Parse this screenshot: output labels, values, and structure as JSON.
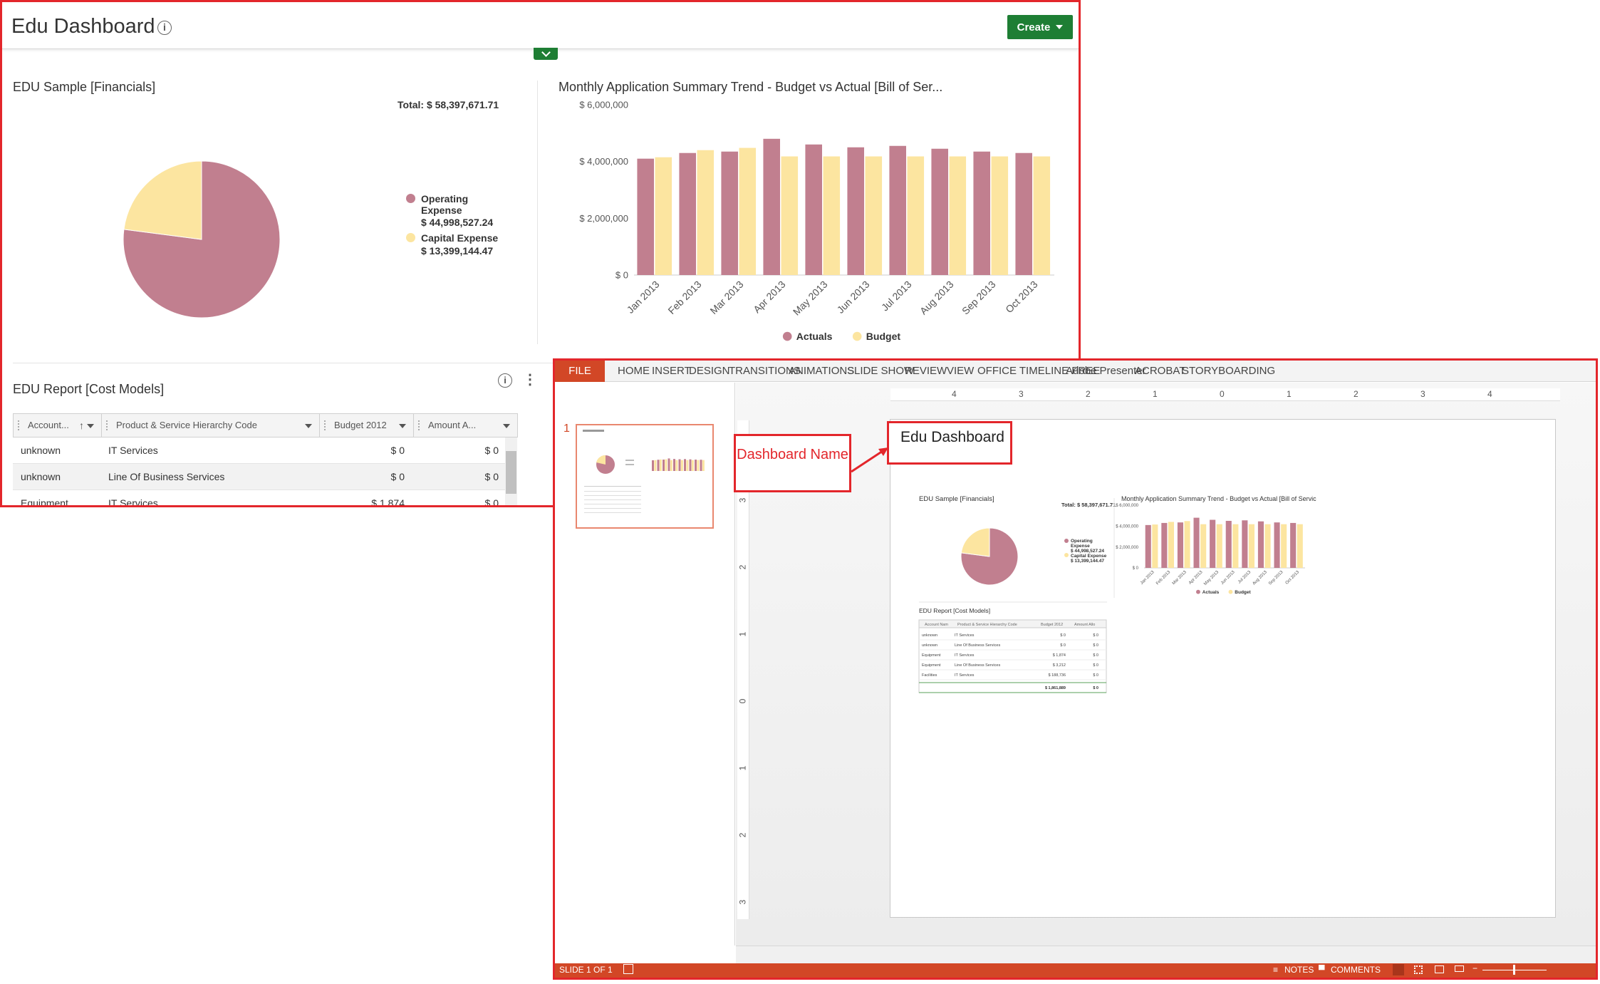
{
  "dashboard": {
    "title": "Edu Dashboard",
    "create_label": "Create",
    "pie_widget": {
      "title": "EDU Sample [Financials]",
      "total_label": "Total: $ 58,397,671.71",
      "legend": [
        {
          "label": "Operating Expense",
          "value": "$ 44,998,527.24",
          "color": "#c17f8f"
        },
        {
          "label": "Capital Expense",
          "value": "$ 13,399,144.47",
          "color": "#fce5a0"
        }
      ]
    },
    "bar_widget": {
      "title": "Monthly Application Summary Trend - Budget vs Actual [Bill of Ser..."
    },
    "report_widget": {
      "title": "EDU Report [Cost Models]",
      "columns": [
        "Account...",
        "Product & Service Hierarchy Code",
        "Budget 2012",
        "Amount A..."
      ],
      "rows": [
        {
          "account": "unknown",
          "code": "IT Services",
          "budget": "$ 0",
          "amount": "$ 0"
        },
        {
          "account": "unknown",
          "code": "Line Of Business Services",
          "budget": "$ 0",
          "amount": "$ 0"
        },
        {
          "account": "Equipment",
          "code": "IT Services",
          "budget": "$ 1,874",
          "amount": "$ 0"
        }
      ]
    }
  },
  "chart_data": [
    {
      "type": "pie",
      "title": "EDU Sample [Financials]",
      "slices": [
        {
          "label": "Operating Expense",
          "value": 44998527.24,
          "color": "#c17f8f"
        },
        {
          "label": "Capital Expense",
          "value": 13399144.47,
          "color": "#fce5a0"
        }
      ]
    },
    {
      "type": "bar",
      "title": "Monthly Application Summary Trend - Budget vs Actual [Bill of Ser...",
      "categories": [
        "Jan 2013",
        "Feb 2013",
        "Mar 2013",
        "Apr 2013",
        "May 2013",
        "Jun 2013",
        "Jul 2013",
        "Aug 2013",
        "Sep 2013",
        "Oct 2013"
      ],
      "y_ticks": [
        "$ 0",
        "$ 2,000,000",
        "$ 4,000,000",
        "$ 6,000,000"
      ],
      "ylim": [
        0,
        6000000
      ],
      "series": [
        {
          "name": "Actuals",
          "color": "#c17f8f",
          "values": [
            4100000,
            4300000,
            4350000,
            4800000,
            4600000,
            4500000,
            4550000,
            4450000,
            4350000,
            4300000
          ]
        },
        {
          "name": "Budget",
          "color": "#fce5a0",
          "values": [
            4150000,
            4400000,
            4480000,
            4180000,
            4180000,
            4180000,
            4180000,
            4180000,
            4180000,
            4180000
          ]
        }
      ],
      "legend": "bottom"
    }
  ],
  "ppt": {
    "tabs": [
      "FILE",
      "HOME",
      "INSERT",
      "DESIGN",
      "TRANSITIONS",
      "ANIMATIONS",
      "SLIDE SHOW",
      "REVIEW",
      "VIEW",
      "OFFICE TIMELINE FREE",
      "Adobe Presenter",
      "ACROBAT",
      "STORYBOARDING"
    ],
    "slide_number": "1",
    "ruler_h": [
      "4",
      "3",
      "2",
      "1",
      "0",
      "1",
      "2",
      "3",
      "4"
    ],
    "ruler_v": [
      "3",
      "2",
      "1",
      "0",
      "1",
      "2",
      "3"
    ],
    "slide": {
      "title": "Edu Dashboard",
      "pie_title": "EDU Sample [Financials]",
      "pie_total": "Total: $ 58,397,671.71",
      "legend": [
        {
          "label": "Operating Expense",
          "value": "$ 44,998,527.24"
        },
        {
          "label": "Capital Expense",
          "value": "$ 13,399,144.47"
        }
      ],
      "bar_title": "Monthly Application Summary Trend - Budget vs Actual [Bill of Servic",
      "report_title": "EDU Report [Cost Models]",
      "columns": [
        "Account Nam",
        "Product & Service Hierarchy Code",
        "Budget 2012",
        "Amount Allo"
      ],
      "rows": [
        {
          "account": "unknown",
          "code": "IT Services",
          "budget": "$ 0",
          "amount": "$ 0"
        },
        {
          "account": "unknown",
          "code": "Line Of Business Services",
          "budget": "$ 0",
          "amount": "$ 0"
        },
        {
          "account": "Equipment",
          "code": "IT Services",
          "budget": "$ 1,874",
          "amount": "$ 0"
        },
        {
          "account": "Equipment",
          "code": "Line Of Business Services",
          "budget": "$ 3,212",
          "amount": "$ 0"
        },
        {
          "account": "Facilities",
          "code": "IT Services",
          "budget": "$ 188,736",
          "amount": "$ 0"
        }
      ],
      "total_budget": "$ 1,861,889",
      "total_amount": "$ 0"
    },
    "callout": "Dashboard Name",
    "status": {
      "slide_of": "SLIDE 1 OF 1",
      "notes": "NOTES",
      "comments": "COMMENTS"
    }
  }
}
